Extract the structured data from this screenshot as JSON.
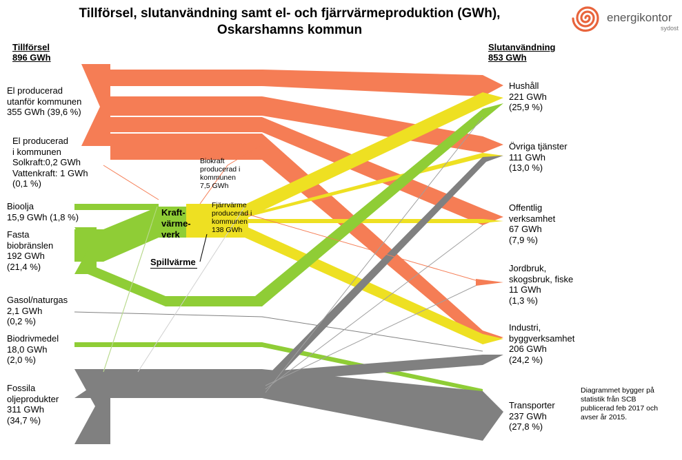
{
  "title": {
    "line1": "Tillförsel, slutanvändning samt el- och fjärrvärmeproduktion (GWh),",
    "line2": "Oskarshamns kommun"
  },
  "logo": {
    "name": "energikontor",
    "sub": "sydost",
    "icon": "spiral-logo-icon",
    "color": "#e8643c"
  },
  "colors": {
    "el": "#f57d55",
    "fjarrvarme": "#eee022",
    "bio": "#8fcd36",
    "fossil": "#808080"
  },
  "supply": {
    "header": "Tillförsel",
    "total": "896 GWh",
    "items": [
      {
        "lines": [
          "El producerad",
          "utanför kommunen",
          "355 GWh (39,6 %)"
        ]
      },
      {
        "lines": [
          "El producerad",
          "i kommunen",
          "Solkraft:0,2 GWh",
          "Vattenkraft: 1 GWh",
          "(0,1 %)"
        ]
      },
      {
        "lines": [
          "Bioolja",
          "15,9 GWh (1,8 %)"
        ]
      },
      {
        "lines": [
          "Fasta",
          "biobränslen",
          "192 GWh",
          "(21,4 %)"
        ]
      },
      {
        "lines": [
          "Gasol/naturgas",
          "2,1 GWh",
          "(0,2 %)"
        ]
      },
      {
        "lines": [
          "Biodrivmedel",
          "18,0 GWh",
          "(2,0 %)"
        ]
      },
      {
        "lines": [
          "Fossila",
          "oljeprodukter",
          "311 GWh",
          "(34,7 %)"
        ]
      }
    ]
  },
  "use": {
    "header": "Slutanvändning",
    "total": "853 GWh",
    "items": [
      {
        "lines": [
          "Hushåll",
          "221 GWh",
          "(25,9 %)"
        ]
      },
      {
        "lines": [
          "Övriga tjänster",
          "111 GWh",
          "(13,0 %)"
        ]
      },
      {
        "lines": [
          "Offentlig",
          "verksamhet",
          "67 GWh",
          "(7,9 %)"
        ]
      },
      {
        "lines": [
          "Jordbruk,",
          "skogsbruk, fiske",
          "11 GWh",
          "(1,3 %)"
        ]
      },
      {
        "lines": [
          "Industri,",
          "byggverksamhet",
          "206 GWh",
          "(24,2 %)"
        ]
      },
      {
        "lines": [
          "Transporter",
          "237 GWh",
          "(27,8 %)"
        ]
      }
    ]
  },
  "middle": {
    "kvv": [
      "Kraft-",
      "värme-",
      "verk"
    ],
    "biokraft": [
      "Biokraft",
      "producerad i",
      "kommunen",
      "7,5 GWh"
    ],
    "fjarrvarme": [
      "Fjärrvärme",
      "producerad i",
      "kommunen",
      "138 GWh"
    ],
    "spillvarme": "Spillvärme"
  },
  "note": [
    "Diagrammet bygger på",
    "statistik från SCB",
    "publicerad feb 2017 och",
    "avser år 2015."
  ]
}
